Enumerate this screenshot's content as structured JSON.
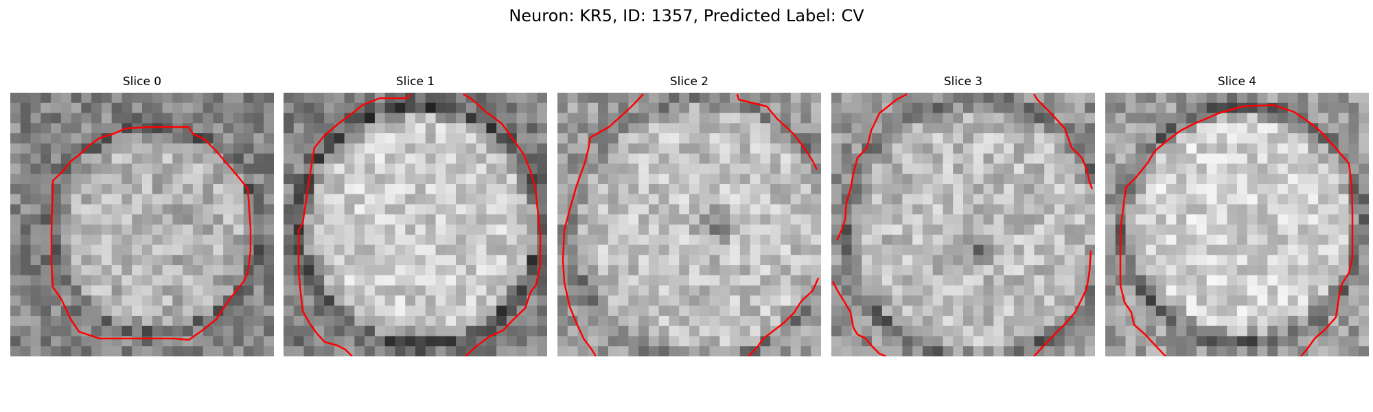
{
  "figure": {
    "title": "Neuron: KR5, ID: 1357, Predicted Label: CV",
    "contour_color": "#ff0000",
    "colormap": "gray"
  },
  "panels": [
    {
      "title": "Slice 0"
    },
    {
      "title": "Slice 1"
    },
    {
      "title": "Slice 2"
    },
    {
      "title": "Slice 3"
    },
    {
      "title": "Slice 4"
    }
  ]
}
